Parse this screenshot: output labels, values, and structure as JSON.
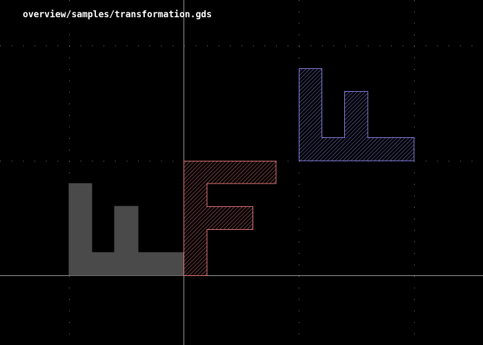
{
  "window": {
    "file_path": "overview/samples/transformation.gds"
  },
  "colors": {
    "background": "#000000",
    "axis": "#9a9a9a",
    "grid_dots": "#8a8a8a",
    "title": "#ffffff"
  },
  "layers": [
    {
      "name": "gray-solid",
      "fill": "#4a4a4a",
      "stroke": "#4a4a4a",
      "hatched": false
    },
    {
      "name": "red-hatched",
      "fill": "#000000",
      "stroke": "#e87878",
      "hatched": true
    },
    {
      "name": "blue-hatched",
      "fill": "#000000",
      "stroke": "#8a84e8",
      "hatched": true
    }
  ]
}
